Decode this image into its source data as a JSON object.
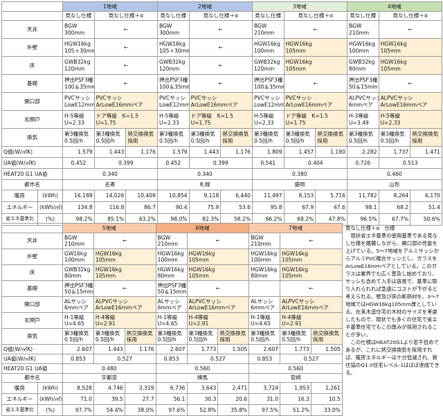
{
  "subheaders": [
    "見なし仕様",
    "見なし仕様＋α"
  ],
  "row_labels": {
    "specs": [
      "天井",
      "外壁",
      "床",
      "基礎",
      "開口部",
      "玄関戸",
      "換気"
    ],
    "q": "Q値(W/㎡K)",
    "ua": "UA値(W/㎡K)",
    "heat": "HEAT20 G1 UA値",
    "city": "都市名",
    "energy": [
      [
        "暖房",
        "(kWh)"
      ],
      [
        "エネルギー",
        "(kWh/㎡)"
      ],
      [
        "省エネ基準比",
        "(%)"
      ]
    ]
  },
  "blocks": [
    {
      "regions": [
        {
          "name": "1地域",
          "color": "#b4c6e7",
          "specs": [
            [
              [
                "BGW",
                "300mm"
              ],
              [
                "←"
              ]
            ],
            [
              [
                "HGW16kg",
                "105＋30mm"
              ],
              [
                "←"
              ]
            ],
            [
              [
                "GWB32kg",
                "120mm"
              ],
              [
                "←"
              ]
            ],
            [
              [
                "押出PSF3種",
                "100＆35mm"
              ],
              [
                "←"
              ]
            ],
            [
              [
                "PVCサッシ",
                "LowE12mmペア"
              ],
              [
                "PVCサッシ",
                "ArLowE16mmペア"
              ]
            ],
            [
              [
                "H-5等級",
                "U=2.33"
              ],
              [
                "ドア等級　K=1.5",
                "U=1.75"
              ]
            ],
            [
              [
                "第3種換気",
                "0.5回/h"
              ],
              [
                "第3種換気",
                "0.5回/h"
              ],
              [
                "熱交換換気",
                "採用"
              ]
            ]
          ],
          "q": [
            "1.579",
            "1.443",
            "1.176"
          ],
          "ua": [
            "0.452",
            "0.399"
          ],
          "heat": "0.340",
          "city": "名寄",
          "energy": [
            [
              "16,188",
              "14,026",
              "10,409"
            ],
            [
              "134.8",
              "116.8",
              "86.7"
            ],
            [
              "98.2%",
              "85.1%",
              "63.2%"
            ]
          ]
        },
        {
          "name": "2地域",
          "color": "#b4c6e7",
          "specs": [
            [
              [
                "BGW",
                "300mm"
              ],
              [
                "←"
              ]
            ],
            [
              [
                "HGW16kg",
                "105＋30mm"
              ],
              [
                "←"
              ]
            ],
            [
              [
                "GWB32kg",
                "120mm"
              ],
              [
                "←"
              ]
            ],
            [
              [
                "押出PSF3種",
                "100＆35mm"
              ],
              [
                "←"
              ]
            ],
            [
              [
                "PVCサッシ",
                "LowE12mmペア"
              ],
              [
                "PVCサッシ",
                "ArLowE16mmペア"
              ]
            ],
            [
              [
                "H-5等級",
                "U=2.33"
              ],
              [
                "ドア等級　K=1.5",
                "U=1.75"
              ]
            ],
            [
              [
                "第3種換気",
                "0.5回/h"
              ],
              [
                "第3種換気",
                "0.5回/h"
              ],
              [
                "熱交換換気",
                "採用"
              ]
            ]
          ],
          "q": [
            "1.579",
            "1.443",
            "1.176"
          ],
          "ua": [
            "0.452",
            "0.399"
          ],
          "heat": "0.340",
          "city": "札幌",
          "energy": [
            [
              "10,854",
              "9,118",
              "6,440"
            ],
            [
              "90.4",
              "75.9",
              "53.6"
            ],
            [
              "98.0%",
              "82.3%",
              "58.2%"
            ]
          ]
        },
        {
          "name": "3地域",
          "color": "#e2efda",
          "specs": [
            [
              [
                "BGW",
                "210mm"
              ],
              [
                "←"
              ]
            ],
            [
              [
                "HGW16kg",
                "100mm"
              ],
              [
                "HGW16kg",
                "105mm"
              ]
            ],
            [
              [
                "GWB32kg",
                "120mm"
              ],
              [
                "HGW16kg",
                "105mm"
              ]
            ],
            [
              [
                "押出PSF3種",
                "100＆35mm"
              ],
              [
                "←"
              ]
            ],
            [
              [
                "PVCサッシ",
                "LowE12mmペア"
              ],
              [
                "PVCサッシ",
                "ArLowE16mmペア"
              ]
            ],
            [
              [
                "H-5等級",
                "U=2.33"
              ],
              [
                "ドア等級　K=1.5",
                "U=1.75"
              ]
            ],
            [
              [
                "第3種換気",
                "0.5回/h"
              ],
              [
                "第3種換気",
                "0.5回/h"
              ],
              [
                "熱交換換気",
                "採用"
              ]
            ]
          ],
          "q": [
            "1.809",
            "1.457",
            "1.190"
          ],
          "ua": [
            "0.541",
            "0.404"
          ],
          "heat": "0.380",
          "city": "盛岡",
          "energy": [
            [
              "11,497",
              "8,153",
              "5,716"
            ],
            [
              "95.8",
              "67.9",
              "47.6"
            ],
            [
              "96.2%",
              "68.2%",
              "47.8%"
            ]
          ]
        },
        {
          "name": "4地域",
          "color": "#c6e0b4",
          "specs": [
            [
              [
                "BGW",
                "210mm"
              ],
              [
                "←"
              ]
            ],
            [
              [
                "HGW16kg",
                "100mm"
              ],
              [
                "HGW16kg",
                "105mm"
              ]
            ],
            [
              [
                "GWB32kg",
                "80mm"
              ],
              [
                "HGW16kg",
                "105mm"
              ]
            ],
            [
              [
                "押出PSF3種",
                "50＆15mm"
              ],
              [
                "←"
              ]
            ],
            [
              [
                "ALPVCサッシ",
                "6mmペア"
              ],
              [
                "ALPVCサッシ",
                "ArLowE16mmペア"
              ]
            ],
            [
              [
                "H-3等級",
                "U=3.49"
              ],
              [
                "H-5等級",
                "U=2.33"
              ]
            ],
            [
              [
                "第3種換気",
                "0.5回/h"
              ],
              [
                "第3種換気",
                "0.5回/h"
              ],
              [
                "熱交換換気",
                "採用"
              ]
            ]
          ],
          "q": [
            "2.282",
            "1.737",
            "1.471"
          ],
          "ua": [
            "0.726",
            "0.513"
          ],
          "heat": "0.460",
          "city": "山形",
          "energy": [
            [
              "11,782",
              "8,264",
              "6,170"
            ],
            [
              "98.1",
              "68.2",
              "51.4"
            ],
            [
              "96.5%",
              "67.7%",
              "50.6%"
            ]
          ]
        }
      ]
    },
    {
      "regions": [
        {
          "name": "5地域",
          "color": "#f8cbad",
          "specs": [
            [
              [
                "BGW",
                "210mm"
              ],
              [
                "←"
              ]
            ],
            [
              [
                "GW16kg",
                "100mm"
              ],
              [
                "HGW16kg",
                "105mm"
              ]
            ],
            [
              [
                "GWB32kg",
                "80mm"
              ],
              [
                "HGW16kg",
                "105mm"
              ]
            ],
            [
              [
                "押出PSF3種",
                "50＆15mm"
              ],
              [
                "←"
              ]
            ],
            [
              [
                "ALサッシ",
                "6mmペア"
              ],
              [
                "ALPVCサッシ",
                "ArLowE16mmペア"
              ]
            ],
            [
              [
                "H-1等級",
                "U=4.65"
              ],
              [
                "H-4等級",
                "U=2.91"
              ]
            ],
            [
              [
                "第3種換気",
                "0.5回/h"
              ],
              [
                "第3種換気",
                "0.5回/h"
              ],
              [
                "熱交換換気",
                "採用"
              ]
            ]
          ],
          "q": [
            "2.607",
            "1.443",
            "1.176"
          ],
          "ua": [
            "0.853",
            "0.527"
          ],
          "heat": "0.480",
          "city": "宇都宮",
          "energy": [
            [
              "8,528",
              "4,746",
              "3,319"
            ],
            [
              "71.0",
              "39.5",
              "27.7"
            ],
            [
              "97.7%",
              "54.4%",
              "38.0%"
            ]
          ]
        },
        {
          "name": "6地域",
          "color": "#f4b084",
          "specs": [
            [
              [
                "BGW",
                "210mm"
              ],
              [
                "←"
              ]
            ],
            [
              [
                "HGW16kg",
                "100mm"
              ],
              [
                "HGW16kg",
                "105mm"
              ]
            ],
            [
              [
                "HGW16kg",
                "80mm"
              ],
              [
                "HGW16kg",
                "105mm"
              ]
            ],
            [
              [
                "押出PSF3種",
                "50＆15mm"
              ],
              [
                "←"
              ]
            ],
            [
              [
                "ALサッシ",
                "6mmペア"
              ],
              [
                "ALPVCサッシ",
                "ArLowE16mmペア"
              ]
            ],
            [
              [
                "H-1等級",
                "U=4.65"
              ],
              [
                "H-4等級",
                "U=2.91"
              ]
            ],
            [
              [
                "第3種換気",
                "0.5回/h"
              ],
              [
                "第3種換気",
                "0.5回/h"
              ],
              [
                "熱交換換気",
                "採用"
              ]
            ]
          ],
          "q": [
            "2.607",
            "1.773",
            "1.505"
          ],
          "ua": [
            "0.853",
            "0.527"
          ],
          "heat": "0.560",
          "city": "練馬",
          "energy": [
            [
              "6,736",
              "3,643",
              "2,471"
            ],
            [
              "56.1",
              "30.3",
              "20.6"
            ],
            [
              "97.6%",
              "52.8%",
              "35.8%"
            ]
          ]
        },
        {
          "name": "7地域",
          "color": "#f8cbad",
          "specs": [
            [
              [
                "BGW",
                "210mm"
              ],
              [
                "←"
              ]
            ],
            [
              [
                "HGW16kg",
                "100mm"
              ],
              [
                "HGW16kg",
                "105mm"
              ]
            ],
            [
              [
                "HGW16kg",
                "80mm"
              ],
              [
                "HGW16kg",
                "105mm"
              ]
            ],
            [
              null,
              [
                "←"
              ]
            ],
            [
              [
                "ALサッシ",
                "6mmペア"
              ],
              [
                "ALPVCサッシ",
                "ArLowE16mmペア"
              ]
            ],
            [
              [
                "H-1等級",
                "U=4.65"
              ],
              [
                "H-4等級",
                "U=2.91"
              ]
            ],
            [
              [
                "第3種換気",
                "0.5回/h"
              ],
              [
                "第3種換気",
                "0.5回/h"
              ],
              [
                "熱交換換気",
                "採用"
              ]
            ]
          ],
          "q": [
            "2.607",
            "1.773",
            "1.505"
          ],
          "ua": [
            "0.853",
            "0.527"
          ],
          "heat": "0.560",
          "city": "宮崎",
          "energy": [
            [
              "3,724",
              "1,953",
              "1,261"
            ],
            [
              "31.0",
              "16.3",
              "10.5"
            ],
            [
              "97.5%",
              "51.2%",
              "33.0%"
            ]
          ]
        }
      ]
    }
  ],
  "note": {
    "title": "見なし仕様＋α　仕様",
    "paragraphs": [
      "現状省エネ基準の使用基準である見なし仕様を踏襲しながら、開口部の性能を上げている。5～7地域をアルミサッシからアルミPVC複合サッシとし、ガラスをArLowE16mmペアとしている。このガラスは業界でも広く普及し始めており、サッシも含めて入手は容易で、基準に取り入れられれば急速にコストが下がると考えられる。壁及び床の断熱材を、3～7地域ではHGW16kg105mm厚としている。在来木造住宅の木材のサイズを考慮したもので、現状でも多くの住宅で省エネ基準住宅でもこの厚みが採用されることが多い。",
      "この仕様はHEAT20G1より若干低めであるが、これに熱交換換気を採用すれば、暖房エネルギーは十分低減され、新住協のQ1.0住宅レベル-1はほぼ達成できる。"
    ]
  }
}
